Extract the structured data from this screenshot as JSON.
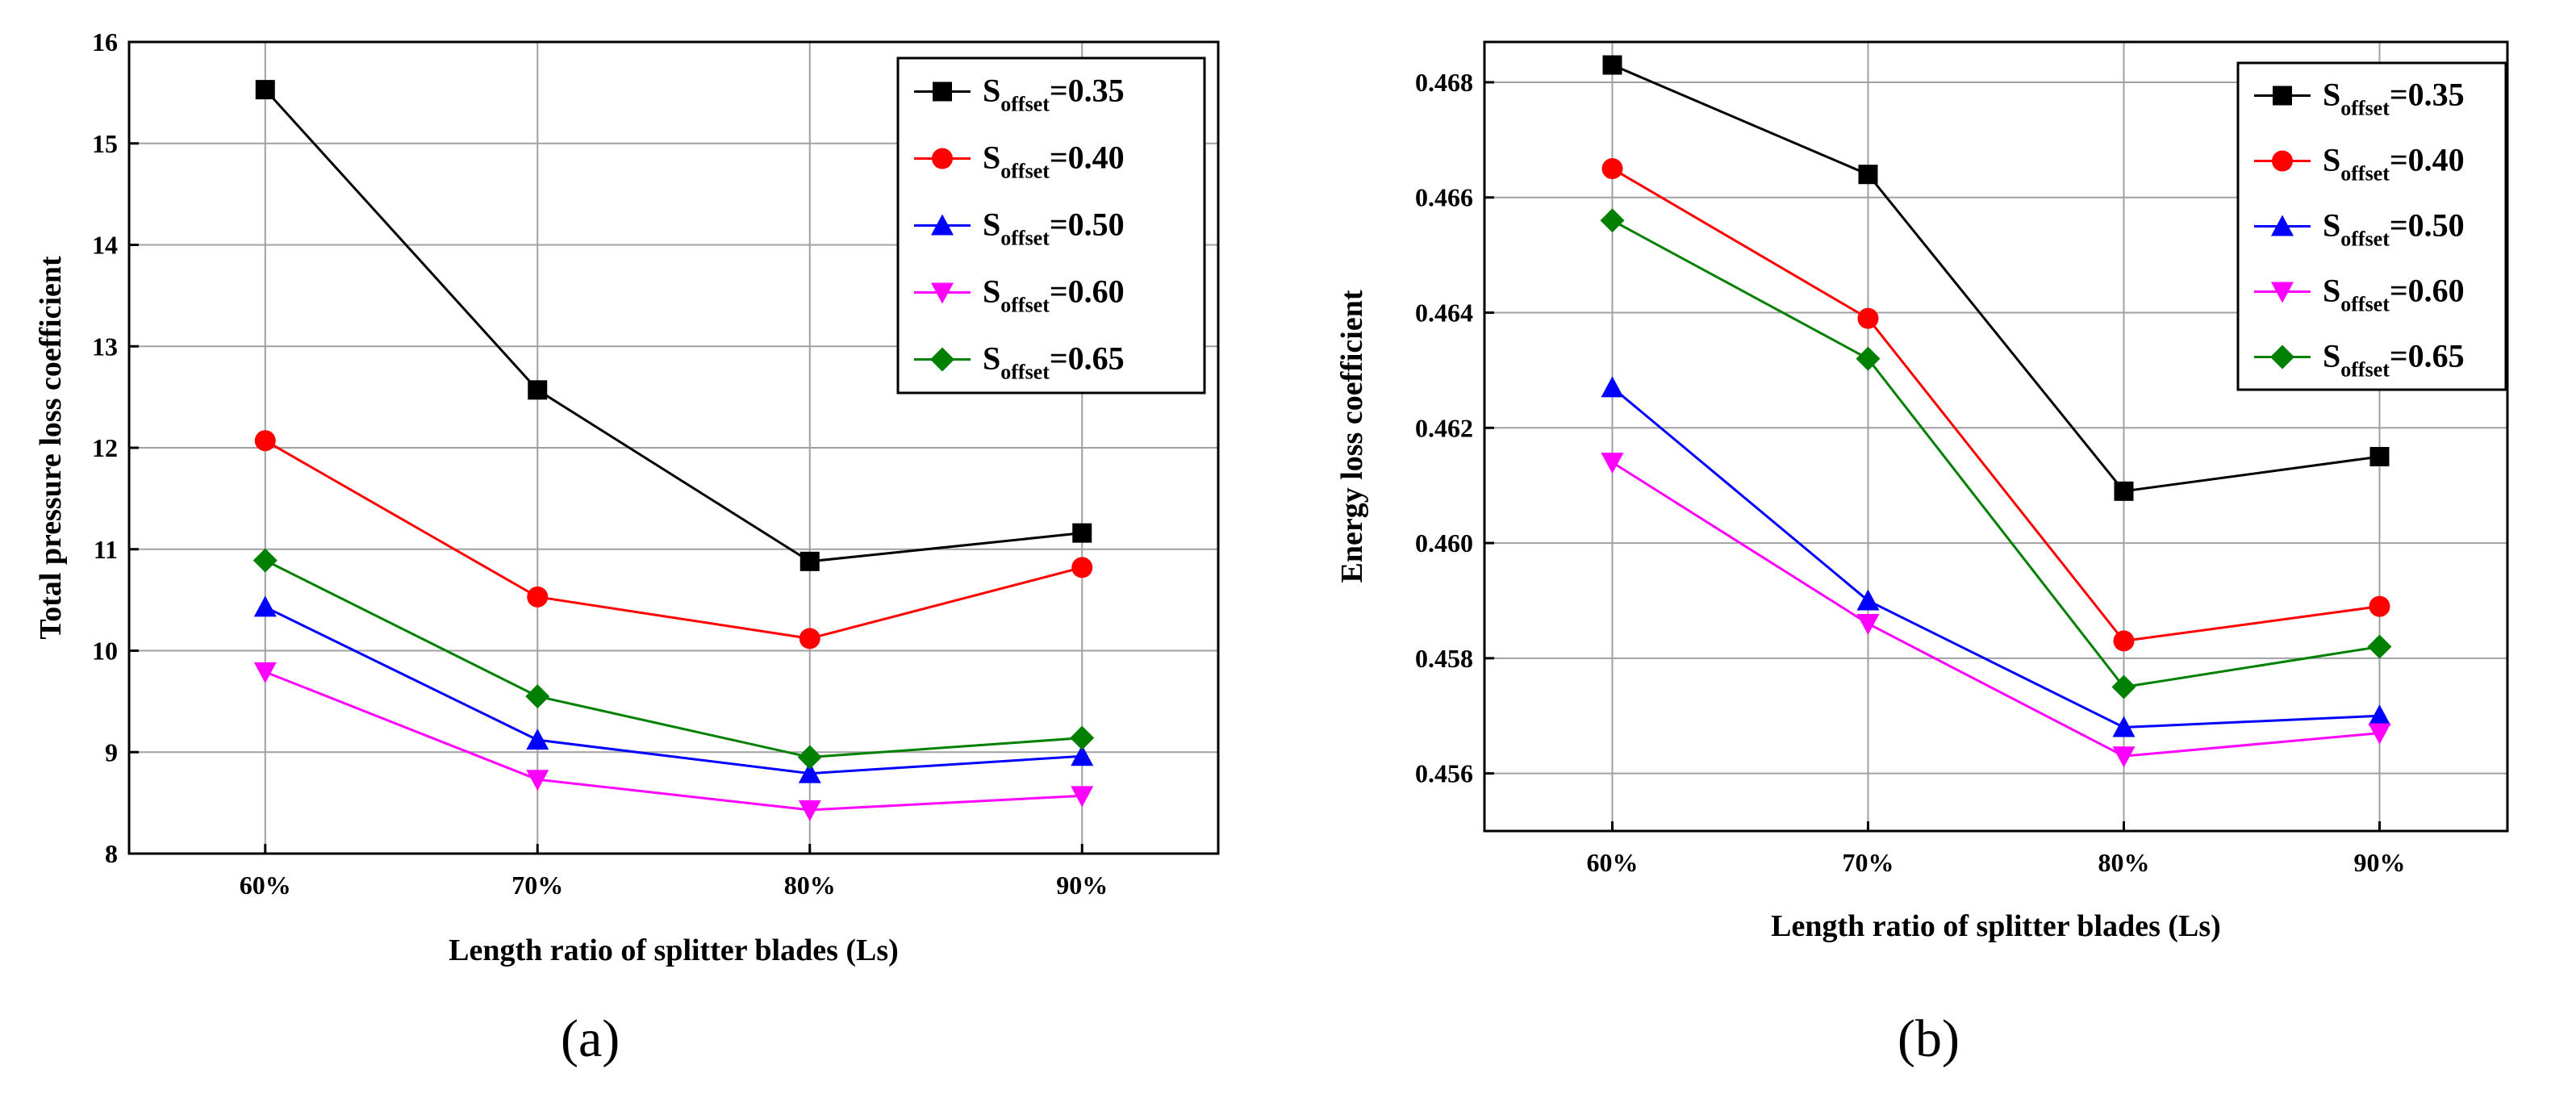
{
  "chart_data": [
    {
      "type": "line",
      "panel_label": "(a)",
      "title": "",
      "xlabel": "Length ratio of splitter blades (Ls)",
      "ylabel": "Total pressure loss coefficient",
      "categories": [
        "60%",
        "70%",
        "80%",
        "90%"
      ],
      "ylim": [
        8,
        16
      ],
      "yticks": [
        8,
        9,
        10,
        11,
        12,
        13,
        14,
        15,
        16
      ],
      "ytick_labels": [
        "8",
        "9",
        "10",
        "11",
        "12",
        "13",
        "14",
        "15",
        "16"
      ],
      "grid": true,
      "legend_position": "top-right",
      "series": [
        {
          "name_main": "S",
          "name_sub": "offset",
          "name_value": "=0.35",
          "color": "#000000",
          "marker": "square",
          "values": [
            15.53,
            12.57,
            10.88,
            11.16
          ]
        },
        {
          "name_main": "S",
          "name_sub": "offset",
          "name_value": "=0.40",
          "color": "#ff0000",
          "marker": "circle",
          "values": [
            12.07,
            10.53,
            10.12,
            10.82
          ]
        },
        {
          "name_main": "S",
          "name_sub": "offset",
          "name_value": "=0.50",
          "color": "#0000ff",
          "marker": "triangle-up",
          "values": [
            10.43,
            9.12,
            8.79,
            8.96
          ]
        },
        {
          "name_main": "S",
          "name_sub": "offset",
          "name_value": "=0.60",
          "color": "#ff00ff",
          "marker": "triangle-down",
          "values": [
            9.79,
            8.73,
            8.43,
            8.57
          ]
        },
        {
          "name_main": "S",
          "name_sub": "offset",
          "name_value": "=0.65",
          "color": "#008000",
          "marker": "diamond",
          "values": [
            10.89,
            9.55,
            8.95,
            9.14
          ]
        }
      ]
    },
    {
      "type": "line",
      "panel_label": "(b)",
      "title": "",
      "xlabel": "Length ratio of splitter blades (Ls)",
      "ylabel": "Energy loss coefficient",
      "categories": [
        "60%",
        "70%",
        "80%",
        "90%"
      ],
      "ylim": [
        0.455,
        0.4687
      ],
      "yticks": [
        0.456,
        0.458,
        0.46,
        0.462,
        0.464,
        0.466,
        0.468
      ],
      "ytick_labels": [
        "0.456",
        "0.458",
        "0.460",
        "0.462",
        "0.464",
        "0.466",
        "0.468"
      ],
      "grid": true,
      "legend_position": "top-right",
      "series": [
        {
          "name_main": "S",
          "name_sub": "offset",
          "name_value": "=0.35",
          "color": "#000000",
          "marker": "square",
          "values": [
            0.4683,
            0.4664,
            0.4609,
            0.4615
          ]
        },
        {
          "name_main": "S",
          "name_sub": "offset",
          "name_value": "=0.40",
          "color": "#ff0000",
          "marker": "circle",
          "values": [
            0.4665,
            0.4639,
            0.4583,
            0.4589
          ]
        },
        {
          "name_main": "S",
          "name_sub": "offset",
          "name_value": "=0.50",
          "color": "#0000ff",
          "marker": "triangle-up",
          "values": [
            0.4627,
            0.459,
            0.4568,
            0.457
          ]
        },
        {
          "name_main": "S",
          "name_sub": "offset",
          "name_value": "=0.60",
          "color": "#ff00ff",
          "marker": "triangle-down",
          "values": [
            0.4614,
            0.4586,
            0.4563,
            0.4567
          ]
        },
        {
          "name_main": "S",
          "name_sub": "offset",
          "name_value": "=0.65",
          "color": "#008000",
          "marker": "diamond",
          "values": [
            0.4656,
            0.4632,
            0.4575,
            0.4582
          ]
        }
      ]
    }
  ]
}
